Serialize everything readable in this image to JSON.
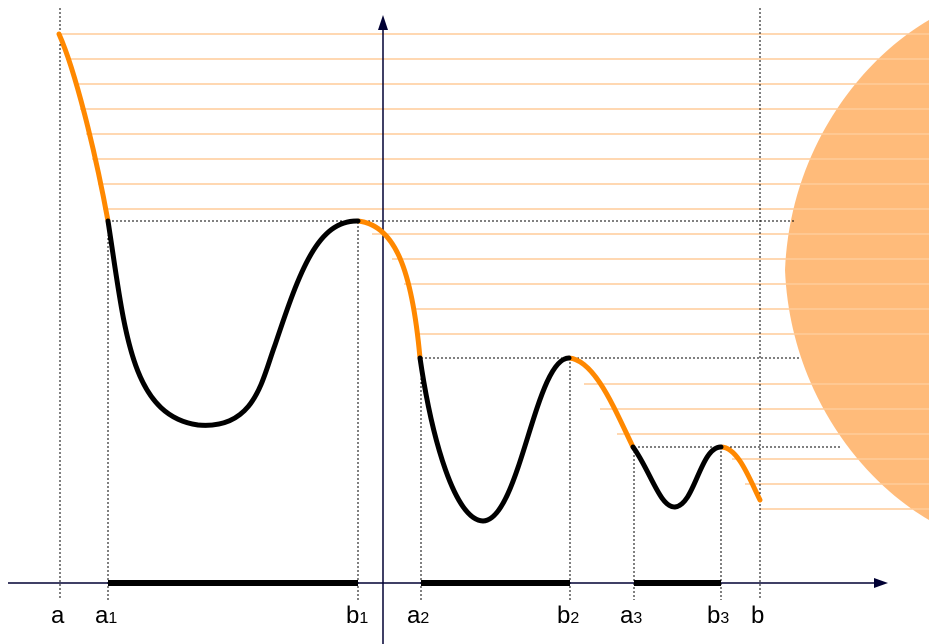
{
  "diagram": {
    "x_labels": [
      {
        "id": "a",
        "main": "a",
        "sub": ""
      },
      {
        "id": "a1",
        "main": "a",
        "sub": "1"
      },
      {
        "id": "b1",
        "main": "b",
        "sub": "1"
      },
      {
        "id": "a2",
        "main": "a",
        "sub": "2"
      },
      {
        "id": "b2",
        "main": "b",
        "sub": "2"
      },
      {
        "id": "a3",
        "main": "a",
        "sub": "3"
      },
      {
        "id": "b3",
        "main": "b",
        "sub": "3"
      },
      {
        "id": "b",
        "main": "b",
        "sub": ""
      }
    ],
    "colors": {
      "increasing_segment": "#ff8800",
      "decreasing_segment": "#000000",
      "shadow_lines": "#ffcc99",
      "sun_shape": "#ffbb7a",
      "axis": "#000033"
    }
  }
}
